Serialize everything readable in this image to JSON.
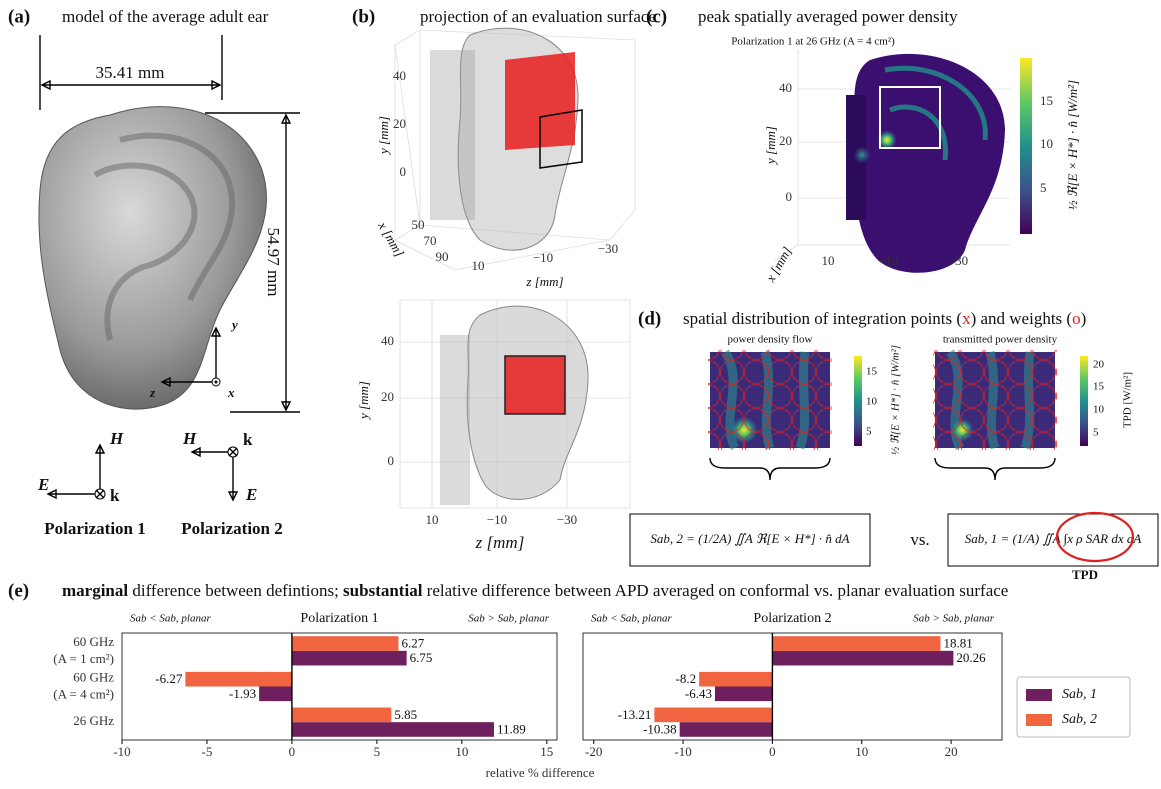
{
  "panels": {
    "a": {
      "label": "(a)",
      "title": "model of the average adult ear",
      "width": "35.41 mm",
      "height": "54.97 mm",
      "axes": [
        "y",
        "z",
        "x"
      ],
      "pol1": {
        "field": [
          "H",
          "E",
          "k"
        ],
        "label": "Polarization 1"
      },
      "pol2": {
        "field": [
          "H",
          "k",
          "E"
        ],
        "label": "Polarization 2"
      }
    },
    "b": {
      "label": "(b)",
      "title": "projection of an evaluation surface",
      "top": {
        "ylabel": "y [mm]",
        "yticks": [
          "40",
          "20",
          "0"
        ],
        "xlabel": "x [mm]",
        "xticks": [
          "50",
          "70",
          "90"
        ],
        "zlabel": "z [mm]",
        "zticks": [
          "10",
          "−10",
          "−30"
        ]
      },
      "bottom": {
        "ylabel": "y [mm]",
        "yticks": [
          "40",
          "20",
          "0"
        ],
        "zlabel": "z [mm]",
        "zticks": [
          "10",
          "−10",
          "−30"
        ]
      }
    },
    "c": {
      "label": "(c)",
      "title": "peak spatially averaged power density",
      "subtitle": "Polarization 1 at 26 GHz (A = 4 cm²)",
      "ylabel": "y [mm]",
      "yticks": [
        "40",
        "20",
        "0"
      ],
      "xlabel": "x [mm]",
      "zticks": [
        "10",
        "−10",
        "−30"
      ],
      "cbar_label": "½ ℜ[E × H*] · n̂ [W/m²]",
      "cbar_ticks": [
        "15",
        "10",
        "5"
      ]
    },
    "d": {
      "label": "(d)",
      "title_parts": [
        "spatial distribution of integration points (",
        "x",
        ") and weights (",
        "o",
        ")"
      ],
      "left": {
        "title": "power density flow",
        "cbar_label": "½ ℜ[E × H*] · n̂ [W/m²]",
        "cbar_ticks": [
          "15",
          "10",
          "5"
        ]
      },
      "right": {
        "title": "transmitted power density",
        "cbar_label": "TPD [W/m²]",
        "cbar_ticks": [
          "20",
          "15",
          "10",
          "5"
        ]
      },
      "eq_left": "Sab, 2 = (1/2A) ∬A ℜ[E × H*] · n̂ dA",
      "vs": "vs.",
      "eq_right": "Sab, 1 = (1/A) ∬A ∫x ρ SAR dx dA",
      "tpd": "TPD"
    },
    "e": {
      "label": "(e)",
      "title_parts": [
        "marginal",
        " difference between defintions; ",
        "substantial",
        " relative difference between APD averaged on conformal vs. planar evaluation surface"
      ]
    }
  },
  "chart_data": [
    {
      "type": "barh",
      "title": "Polarization 1",
      "left_note": "Sab < Sab, planar",
      "right_note": "Sab > Sab, planar",
      "xlabel": "relative % difference",
      "categories": [
        "60 GHz\n(A = 1 cm²)",
        "60 GHz\n(A = 4 cm²)",
        "26 GHz"
      ],
      "series": [
        {
          "name": "Sab, 1",
          "color": "#6e1f5e",
          "values": [
            6.75,
            -1.93,
            11.89
          ]
        },
        {
          "name": "Sab, 2",
          "color": "#f0643f",
          "values": [
            6.27,
            -6.27,
            5.85
          ]
        }
      ],
      "xlim": [
        -10,
        15.6
      ],
      "xticks": [
        -10,
        -5,
        0,
        5,
        10,
        15
      ]
    },
    {
      "type": "barh",
      "title": "Polarization 2",
      "left_note": "Sab < Sab, planar",
      "right_note": "Sab > Sab, planar",
      "series": [
        {
          "name": "Sab, 1",
          "color": "#6e1f5e",
          "values": [
            20.26,
            -6.43,
            -10.38
          ]
        },
        {
          "name": "Sab, 2",
          "color": "#f0643f",
          "values": [
            18.81,
            -8.2,
            -13.21
          ]
        }
      ],
      "xlim": [
        -21.2,
        25.7
      ],
      "xticks": [
        -20,
        -10,
        0,
        10,
        20
      ]
    }
  ]
}
